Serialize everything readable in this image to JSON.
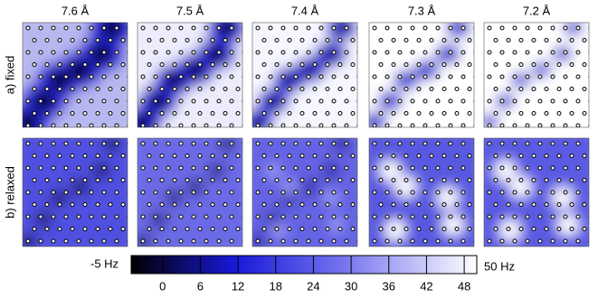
{
  "columns": [
    "7.6 Å",
    "7.5 Å",
    "7.4 Å",
    "7.3 Å",
    "7.2 Å"
  ],
  "rows": [
    "a) fixed",
    "b) relaxed"
  ],
  "colorbar": {
    "min_label": "-5 Hz",
    "max_label": "50 Hz",
    "range": [
      -5,
      50
    ],
    "ticks": [
      0,
      6,
      12,
      18,
      24,
      30,
      36,
      42,
      48
    ]
  }
}
